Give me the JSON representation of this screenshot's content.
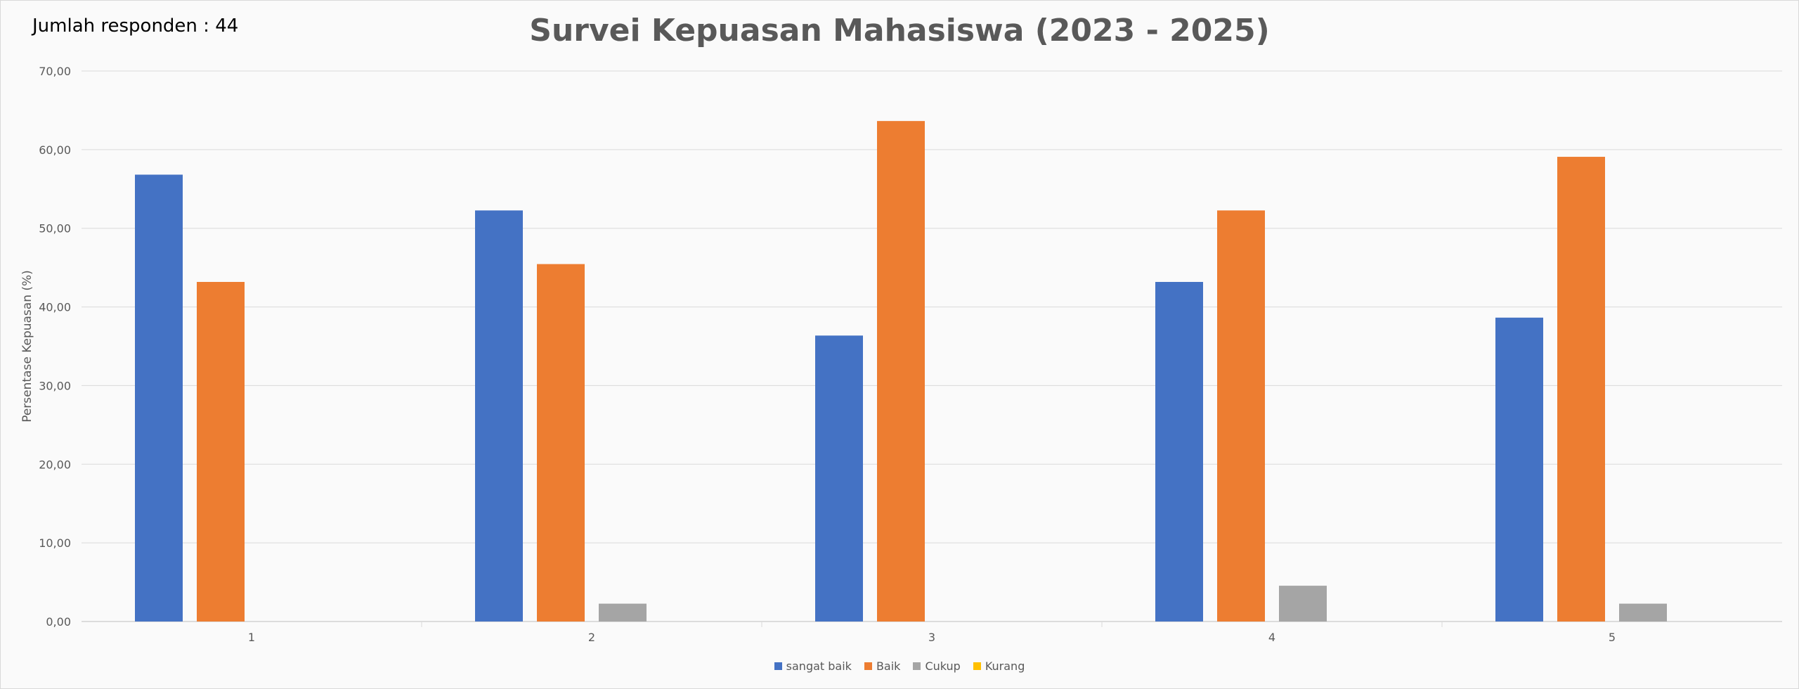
{
  "respondent_text": "Jumlah responden : 44",
  "chart_data": {
    "type": "bar",
    "title": "Survei Kepuasan Mahasiswa (2023 - 2025)",
    "ylabel": "Persentase Kepuasan (%)",
    "xlabel": "",
    "categories": [
      "1",
      "2",
      "3",
      "4",
      "5"
    ],
    "ylim": [
      0,
      70
    ],
    "yticks": [
      "0,00",
      "10,00",
      "20,00",
      "30,00",
      "40,00",
      "50,00",
      "60,00",
      "70,00"
    ],
    "grid": true,
    "legend_position": "bottom",
    "series": [
      {
        "name": "sangat baik",
        "color": "#4472c4",
        "values": [
          56.82,
          52.27,
          36.36,
          43.18,
          38.64
        ]
      },
      {
        "name": "Baik",
        "color": "#ed7d31",
        "values": [
          43.18,
          45.45,
          63.64,
          52.27,
          59.09
        ]
      },
      {
        "name": "Cukup",
        "color": "#a5a5a5",
        "values": [
          0,
          2.27,
          0,
          4.55,
          2.27
        ]
      },
      {
        "name": "Kurang",
        "color": "#ffc000",
        "values": [
          0,
          0,
          0,
          0,
          0
        ]
      }
    ]
  }
}
